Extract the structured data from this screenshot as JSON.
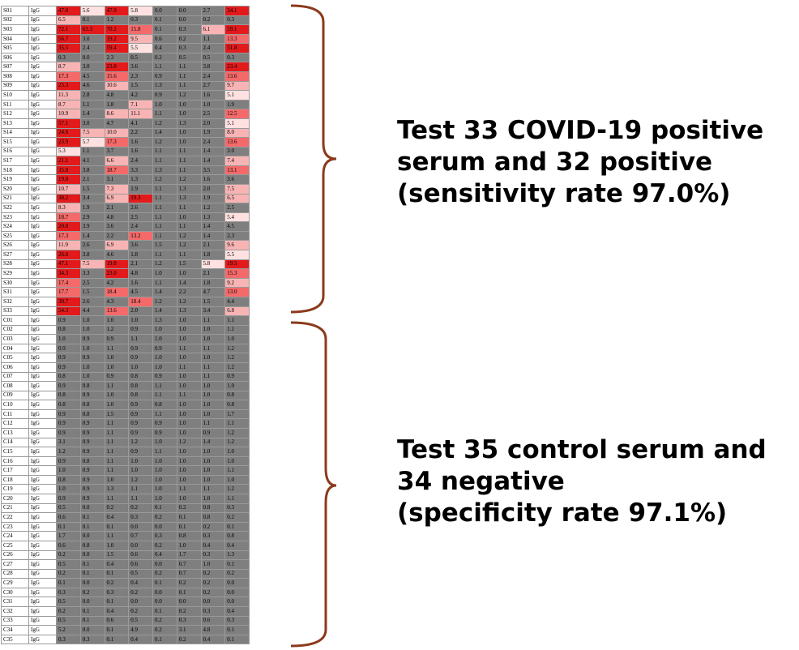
{
  "chart_data": {
    "type": "heatmap",
    "columns_shown": 8,
    "colors": {
      "very_high": "#e31a1c",
      "high": "#f46a6a",
      "medium": "#f8b4b4",
      "low": "#ffe1e1",
      "baseline": "#7f7f7f",
      "label_cell": "#ffffff"
    },
    "rows": [
      {
        "id": "S01",
        "antibody": "IgG",
        "values": [
          "47.0",
          "5.6",
          "47.9",
          "5.8",
          "0.0",
          "0.0",
          "2.7",
          "34.1"
        ]
      },
      {
        "id": "S02",
        "antibody": "IgG",
        "values": [
          "6.5",
          "0.1",
          "1.2",
          "0.3",
          "0.1",
          "0.0",
          "0.2",
          "0.3"
        ]
      },
      {
        "id": "S03",
        "antibody": "IgG",
        "values": [
          "72.1",
          "63.3",
          "70.2",
          "15.8",
          "0.1",
          "0.3",
          "6.1",
          "59.1"
        ]
      },
      {
        "id": "S04",
        "antibody": "IgG",
        "values": [
          "56.7",
          "3.0",
          "19.2",
          "9.5",
          "0.6",
          "0.2",
          "1.1",
          "13.3"
        ]
      },
      {
        "id": "S05",
        "antibody": "IgG",
        "values": [
          "35.5",
          "2.4",
          "59.4",
          "5.5",
          "0.4",
          "0.3",
          "2.4",
          "51.8"
        ]
      },
      {
        "id": "S06",
        "antibody": "IgG",
        "values": [
          "0.3",
          "0.0",
          "2.3",
          "0.5",
          "0.2",
          "0.5",
          "0.5",
          "0.3"
        ]
      },
      {
        "id": "S07",
        "antibody": "IgG",
        "values": [
          "8.7",
          "3.0",
          "23.8",
          "3.6",
          "1.1",
          "1.1",
          "3.8",
          "23.4"
        ]
      },
      {
        "id": "S08",
        "antibody": "IgG",
        "values": [
          "17.3",
          "4.5",
          "15.6",
          "2.3",
          "0.9",
          "1.1",
          "2.4",
          "13.6"
        ]
      },
      {
        "id": "S09",
        "antibody": "IgG",
        "values": [
          "25.3",
          "4.6",
          "10.6",
          "1.5",
          "1.3",
          "1.1",
          "2.7",
          "9.7"
        ]
      },
      {
        "id": "S10",
        "antibody": "IgG",
        "values": [
          "11.3",
          "2.8",
          "4.8",
          "4.2",
          "0.9",
          "1.2",
          "1.6",
          "5.1"
        ]
      },
      {
        "id": "S11",
        "antibody": "IgG",
        "values": [
          "8.7",
          "1.1",
          "1.8",
          "7.1",
          "1.0",
          "1.0",
          "1.0",
          "1.9"
        ]
      },
      {
        "id": "S12",
        "antibody": "IgG",
        "values": [
          "10.9",
          "1.4",
          "8.6",
          "11.1",
          "1.1",
          "1.0",
          "2.5",
          "12.5"
        ]
      },
      {
        "id": "S13",
        "antibody": "IgG",
        "values": [
          "57.1",
          "3.0",
          "4.7",
          "4.1",
          "1.2",
          "1.3",
          "2.0",
          "5.1"
        ]
      },
      {
        "id": "S14",
        "antibody": "IgG",
        "values": [
          "24.6",
          "7.5",
          "10.0",
          "2.2",
          "1.4",
          "1.0",
          "1.9",
          "8.0"
        ]
      },
      {
        "id": "S15",
        "antibody": "IgG",
        "values": [
          "23.9",
          "5.7",
          "17.3",
          "1.6",
          "1.2",
          "1.0",
          "2.4",
          "13.6"
        ]
      },
      {
        "id": "S16",
        "antibody": "IgG",
        "values": [
          "5.3",
          "1.1",
          "3.7",
          "1.6",
          "1.1",
          "1.1",
          "1.4",
          "3.0"
        ]
      },
      {
        "id": "S17",
        "antibody": "IgG",
        "values": [
          "21.1",
          "4.1",
          "6.6",
          "2.4",
          "1.1",
          "1.1",
          "1.4",
          "7.4"
        ]
      },
      {
        "id": "S18",
        "antibody": "IgG",
        "values": [
          "35.8",
          "3.8",
          "18.7",
          "3.3",
          "1.3",
          "1.1",
          "3.5",
          "13.1"
        ]
      },
      {
        "id": "S19",
        "antibody": "IgG",
        "values": [
          "19.8",
          "2.1",
          "3.1",
          "1.3",
          "1.2",
          "1.2",
          "1.6",
          "3.6"
        ]
      },
      {
        "id": "S20",
        "antibody": "IgG",
        "values": [
          "10.7",
          "1.5",
          "7.3",
          "1.9",
          "1.1",
          "1.3",
          "2.0",
          "7.5"
        ]
      },
      {
        "id": "S21",
        "antibody": "IgG",
        "values": [
          "38.2",
          "3.4",
          "6.9",
          "19.3",
          "1.1",
          "1.3",
          "1.9",
          "6.5"
        ]
      },
      {
        "id": "S22",
        "antibody": "IgG",
        "values": [
          "8.3",
          "1.9",
          "2.1",
          "2.6",
          "1.1",
          "1.1",
          "1.2",
          "2.5"
        ]
      },
      {
        "id": "S23",
        "antibody": "IgG",
        "values": [
          "18.7",
          "2.9",
          "4.8",
          "2.5",
          "1.1",
          "1.0",
          "1.3",
          "5.4"
        ]
      },
      {
        "id": "S24",
        "antibody": "IgG",
        "values": [
          "20.8",
          "3.9",
          "3.6",
          "2.4",
          "1.1",
          "1.1",
          "1.4",
          "4.5"
        ]
      },
      {
        "id": "S25",
        "antibody": "IgG",
        "values": [
          "17.3",
          "1.4",
          "2.2",
          "13.2",
          "1.1",
          "1.2",
          "1.4",
          "2.3"
        ]
      },
      {
        "id": "S26",
        "antibody": "IgG",
        "values": [
          "11.9",
          "2.6",
          "6.9",
          "3.6",
          "1.5",
          "1.2",
          "2.1",
          "9.6"
        ]
      },
      {
        "id": "S27",
        "antibody": "IgG",
        "values": [
          "26.6",
          "3.8",
          "4.6",
          "1.8",
          "1.1",
          "1.1",
          "1.8",
          "5.5"
        ]
      },
      {
        "id": "S28",
        "antibody": "IgG",
        "values": [
          "47.1",
          "7.5",
          "19.8",
          "2.1",
          "1.2",
          "1.5",
          "5.8",
          "19.5"
        ]
      },
      {
        "id": "S29",
        "antibody": "IgG",
        "values": [
          "34.3",
          "3.3",
          "23.0",
          "4.8",
          "1.0",
          "1.0",
          "2.1",
          "15.3"
        ]
      },
      {
        "id": "S30",
        "antibody": "IgG",
        "values": [
          "17.4",
          "2.5",
          "4.2",
          "1.6",
          "1.1",
          "1.4",
          "1.8",
          "9.2"
        ]
      },
      {
        "id": "S31",
        "antibody": "IgG",
        "values": [
          "17.7",
          "1.5",
          "18.4",
          "4.5",
          "1.4",
          "2.2",
          "4.7",
          "13.0"
        ]
      },
      {
        "id": "S32",
        "antibody": "IgG",
        "values": [
          "30.7",
          "2.6",
          "4.3",
          "18.4",
          "1.2",
          "1.2",
          "1.5",
          "4.4"
        ]
      },
      {
        "id": "S33",
        "antibody": "IgG",
        "values": [
          "54.3",
          "4.4",
          "13.6",
          "2.0",
          "1.4",
          "1.3",
          "3.4",
          "6.8"
        ]
      },
      {
        "id": "C01",
        "antibody": "IgG",
        "values": [
          "0.9",
          "1.0",
          "1.0",
          "1.0",
          "1.3",
          "1.0",
          "1.1",
          "1.1"
        ]
      },
      {
        "id": "C02",
        "antibody": "IgG",
        "values": [
          "0.8",
          "1.0",
          "1.2",
          "0.9",
          "1.0",
          "1.0",
          "1.0",
          "1.1"
        ]
      },
      {
        "id": "C03",
        "antibody": "IgG",
        "values": [
          "1.0",
          "0.9",
          "0.9",
          "1.1",
          "1.0",
          "1.0",
          "1.0",
          "1.0"
        ]
      },
      {
        "id": "C04",
        "antibody": "IgG",
        "values": [
          "0.9",
          "1.0",
          "1.1",
          "0.9",
          "0.9",
          "1.1",
          "1.1",
          "1.2"
        ]
      },
      {
        "id": "C05",
        "antibody": "IgG",
        "values": [
          "0.9",
          "0.9",
          "1.0",
          "0.9",
          "1.0",
          "1.0",
          "1.0",
          "1.2"
        ]
      },
      {
        "id": "C06",
        "antibody": "IgG",
        "values": [
          "0.9",
          "1.0",
          "1.0",
          "1.0",
          "1.0",
          "1.1",
          "1.1",
          "1.2"
        ]
      },
      {
        "id": "C07",
        "antibody": "IgG",
        "values": [
          "0.8",
          "1.0",
          "0.9",
          "0.8",
          "0.9",
          "1.0",
          "1.1",
          "0.9"
        ]
      },
      {
        "id": "C08",
        "antibody": "IgG",
        "values": [
          "0.9",
          "0.8",
          "1.1",
          "0.8",
          "1.1",
          "1.0",
          "1.0",
          "1.0"
        ]
      },
      {
        "id": "C09",
        "antibody": "IgG",
        "values": [
          "0.8",
          "0.9",
          "1.0",
          "0.8",
          "1.1",
          "1.1",
          "1.0",
          "0.8"
        ]
      },
      {
        "id": "C10",
        "antibody": "IgG",
        "values": [
          "0.8",
          "0.8",
          "1.0",
          "0.9",
          "0.8",
          "1.0",
          "1.0",
          "0.8"
        ]
      },
      {
        "id": "C11",
        "antibody": "IgG",
        "values": [
          "0.9",
          "0.8",
          "1.5",
          "0.9",
          "1.1",
          "1.0",
          "1.0",
          "1.7"
        ]
      },
      {
        "id": "C12",
        "antibody": "IgG",
        "values": [
          "0.9",
          "0.9",
          "1.1",
          "0.9",
          "0.9",
          "1.0",
          "1.1",
          "1.1"
        ]
      },
      {
        "id": "C13",
        "antibody": "IgG",
        "values": [
          "0.9",
          "0.9",
          "1.1",
          "0.9",
          "0.9",
          "1.0",
          "0.9",
          "1.2"
        ]
      },
      {
        "id": "C14",
        "antibody": "IgG",
        "values": [
          "3.1",
          "0.9",
          "1.1",
          "1.2",
          "1.0",
          "1.2",
          "1.4",
          "1.2"
        ]
      },
      {
        "id": "C15",
        "antibody": "IgG",
        "values": [
          "1.2",
          "0.9",
          "1.1",
          "0.9",
          "1.1",
          "1.0",
          "1.0",
          "1.0"
        ]
      },
      {
        "id": "C16",
        "antibody": "IgG",
        "values": [
          "0.9",
          "0.8",
          "1.1",
          "1.0",
          "1.0",
          "1.0",
          "1.0",
          "1.0"
        ]
      },
      {
        "id": "C17",
        "antibody": "IgG",
        "values": [
          "1.0",
          "0.9",
          "1.1",
          "1.0",
          "1.0",
          "1.0",
          "1.0",
          "1.1"
        ]
      },
      {
        "id": "C18",
        "antibody": "IgG",
        "values": [
          "0.8",
          "0.9",
          "1.0",
          "1.2",
          "1.0",
          "1.0",
          "1.0",
          "1.0"
        ]
      },
      {
        "id": "C19",
        "antibody": "IgG",
        "values": [
          "1.0",
          "0.9",
          "1.3",
          "1.1",
          "1.0",
          "1.1",
          "1.1",
          "1.2"
        ]
      },
      {
        "id": "C20",
        "antibody": "IgG",
        "values": [
          "0.9",
          "0.9",
          "1.1",
          "1.1",
          "1.0",
          "1.0",
          "1.0",
          "1.1"
        ]
      },
      {
        "id": "C21",
        "antibody": "IgG",
        "values": [
          "0.5",
          "0.0",
          "0.2",
          "0.2",
          "0.1",
          "0.2",
          "0.8",
          "0.3"
        ]
      },
      {
        "id": "C22",
        "antibody": "IgG",
        "values": [
          "0.6",
          "0.1",
          "0.4",
          "0.3",
          "0.2",
          "0.1",
          "0.8",
          "0.2"
        ]
      },
      {
        "id": "C23",
        "antibody": "IgG",
        "values": [
          "0.1",
          "0.1",
          "0.1",
          "0.0",
          "0.0",
          "0.1",
          "0.2",
          "0.1"
        ]
      },
      {
        "id": "C24",
        "antibody": "IgG",
        "values": [
          "1.7",
          "0.0",
          "1.1",
          "0.7",
          "0.3",
          "0.8",
          "0.3",
          "0.8"
        ]
      },
      {
        "id": "C25",
        "antibody": "IgG",
        "values": [
          "0.6",
          "0.8",
          "1.0",
          "0.0",
          "0.2",
          "1.0",
          "0.4",
          "0.4"
        ]
      },
      {
        "id": "C26",
        "antibody": "IgG",
        "values": [
          "0.2",
          "0.0",
          "1.5",
          "0.6",
          "0.4",
          "1.7",
          "0.3",
          "1.3"
        ]
      },
      {
        "id": "C27",
        "antibody": "IgG",
        "values": [
          "0.5",
          "0.1",
          "0.4",
          "0.6",
          "0.0",
          "0.7",
          "1.0",
          "0.1"
        ]
      },
      {
        "id": "C28",
        "antibody": "IgG",
        "values": [
          "0.2",
          "0.1",
          "0.1",
          "0.5",
          "0.2",
          "0.7",
          "0.2",
          "0.2"
        ]
      },
      {
        "id": "C29",
        "antibody": "IgG",
        "values": [
          "0.1",
          "0.0",
          "0.2",
          "0.4",
          "0.1",
          "0.2",
          "0.2",
          "0.0"
        ]
      },
      {
        "id": "C30",
        "antibody": "IgG",
        "values": [
          "0.3",
          "0.2",
          "0.3",
          "0.2",
          "0.0",
          "0.1",
          "0.2",
          "0.0"
        ]
      },
      {
        "id": "C31",
        "antibody": "IgG",
        "values": [
          "0.5",
          "0.0",
          "0.1",
          "0.0",
          "0.0",
          "0.0",
          "0.0",
          "0.0"
        ]
      },
      {
        "id": "C32",
        "antibody": "IgG",
        "values": [
          "0.2",
          "0.1",
          "0.4",
          "0.2",
          "0.1",
          "0.2",
          "0.3",
          "0.4"
        ]
      },
      {
        "id": "C33",
        "antibody": "IgG",
        "values": [
          "0.5",
          "0.1",
          "0.6",
          "0.5",
          "0.2",
          "0.3",
          "0.6",
          "0.3"
        ]
      },
      {
        "id": "C34",
        "antibody": "IgG",
        "values": [
          "5.2",
          "0.0",
          "0.1",
          "4.9",
          "0.2",
          "3.1",
          "4.8",
          "0.1"
        ]
      },
      {
        "id": "C35",
        "antibody": "IgG",
        "values": [
          "0.3",
          "0.3",
          "0.1",
          "0.4",
          "0.1",
          "0.2",
          "0.4",
          "0.1"
        ]
      }
    ]
  },
  "annotations": {
    "positive": {
      "lines": [
        "Test 33 COVID-19 positive",
        "serum and 32 positive",
        "(sensitivity rate 97.0%)"
      ]
    },
    "control": {
      "lines": [
        "Test 35 control serum and",
        "34 negative",
        "(specificity rate 97.1%)"
      ]
    }
  }
}
